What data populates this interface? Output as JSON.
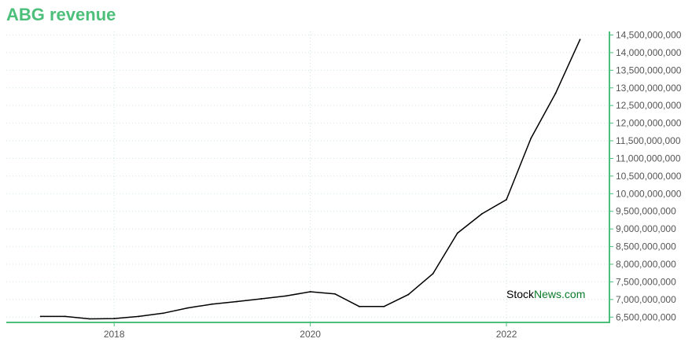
{
  "title": "ABG revenue",
  "watermark": {
    "part1": "Stock",
    "part2": "News",
    "part3": ".com"
  },
  "colors": {
    "accent": "#4cbf7a",
    "line": "#000000",
    "grid": "#cfe8d8",
    "watermark_dark": "#000000",
    "watermark_green": "#0a7a2a"
  },
  "chart_data": {
    "type": "line",
    "title": "ABG revenue",
    "xlabel": "",
    "ylabel": "",
    "xlim": [
      2016.9,
      2023.05
    ],
    "ylim": [
      6350000000,
      14600000000
    ],
    "x_ticks": [
      {
        "value": 2018,
        "label": "2018"
      },
      {
        "value": 2020,
        "label": "2020"
      },
      {
        "value": 2022,
        "label": "2022"
      }
    ],
    "y_ticks": [
      {
        "value": 6500000000,
        "label": "6,500,000,000"
      },
      {
        "value": 7000000000,
        "label": "7,000,000,000"
      },
      {
        "value": 7500000000,
        "label": "7,500,000,000"
      },
      {
        "value": 8000000000,
        "label": "8,000,000,000"
      },
      {
        "value": 8500000000,
        "label": "8,500,000,000"
      },
      {
        "value": 9000000000,
        "label": "9,000,000,000"
      },
      {
        "value": 9500000000,
        "label": "9,500,000,000"
      },
      {
        "value": 10000000000,
        "label": "10,000,000,000"
      },
      {
        "value": 10500000000,
        "label": "10,500,000,000"
      },
      {
        "value": 11000000000,
        "label": "11,000,000,000"
      },
      {
        "value": 11500000000,
        "label": "11,500,000,000"
      },
      {
        "value": 12000000000,
        "label": "12,000,000,000"
      },
      {
        "value": 12500000000,
        "label": "12,500,000,000"
      },
      {
        "value": 13000000000,
        "label": "13,000,000,000"
      },
      {
        "value": 13500000000,
        "label": "13,500,000,000"
      },
      {
        "value": 14000000000,
        "label": "14,000,000,000"
      },
      {
        "value": 14500000000,
        "label": "14,500,000,000"
      }
    ],
    "y_axis_position": "right",
    "grid": true,
    "series": [
      {
        "points": [
          {
            "x": 2017.25,
            "y": 6520000000
          },
          {
            "x": 2017.5,
            "y": 6520000000
          },
          {
            "x": 2017.75,
            "y": 6450000000
          },
          {
            "x": 2018.0,
            "y": 6460000000
          },
          {
            "x": 2018.25,
            "y": 6520000000
          },
          {
            "x": 2018.5,
            "y": 6610000000
          },
          {
            "x": 2018.75,
            "y": 6760000000
          },
          {
            "x": 2019.0,
            "y": 6870000000
          },
          {
            "x": 2019.25,
            "y": 6940000000
          },
          {
            "x": 2019.5,
            "y": 7020000000
          },
          {
            "x": 2019.75,
            "y": 7100000000
          },
          {
            "x": 2020.0,
            "y": 7220000000
          },
          {
            "x": 2020.25,
            "y": 7160000000
          },
          {
            "x": 2020.5,
            "y": 6800000000
          },
          {
            "x": 2020.75,
            "y": 6800000000
          },
          {
            "x": 2021.0,
            "y": 7140000000
          },
          {
            "x": 2021.25,
            "y": 7730000000
          },
          {
            "x": 2021.5,
            "y": 8880000000
          },
          {
            "x": 2021.75,
            "y": 9430000000
          },
          {
            "x": 2022.0,
            "y": 9830000000
          },
          {
            "x": 2022.25,
            "y": 11570000000
          },
          {
            "x": 2022.5,
            "y": 12840000000
          },
          {
            "x": 2022.75,
            "y": 14370000000
          }
        ]
      }
    ]
  }
}
